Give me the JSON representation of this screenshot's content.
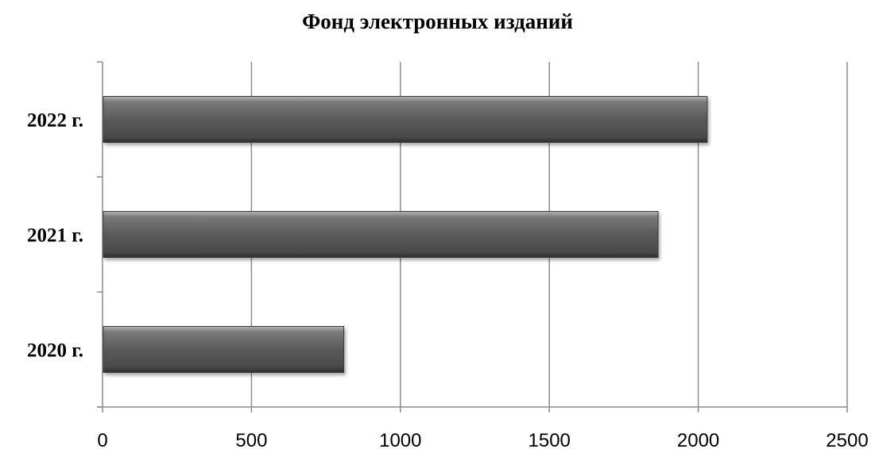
{
  "chart_data": {
    "type": "bar",
    "orientation": "horizontal",
    "title": "Фонд электронных изданий",
    "xlabel": "",
    "ylabel": "",
    "categories": [
      "2020 г.",
      "2021 г.",
      "2022 г."
    ],
    "values": [
      810,
      1865,
      2030
    ],
    "xlim": [
      0,
      2500
    ],
    "x_ticks": [
      "0",
      "500",
      "1000",
      "1500",
      "2000",
      "2500"
    ],
    "grid": "vertical",
    "legend": "none",
    "bar_color": "#5a5a5a",
    "grid_color": "#8c8c8c"
  }
}
